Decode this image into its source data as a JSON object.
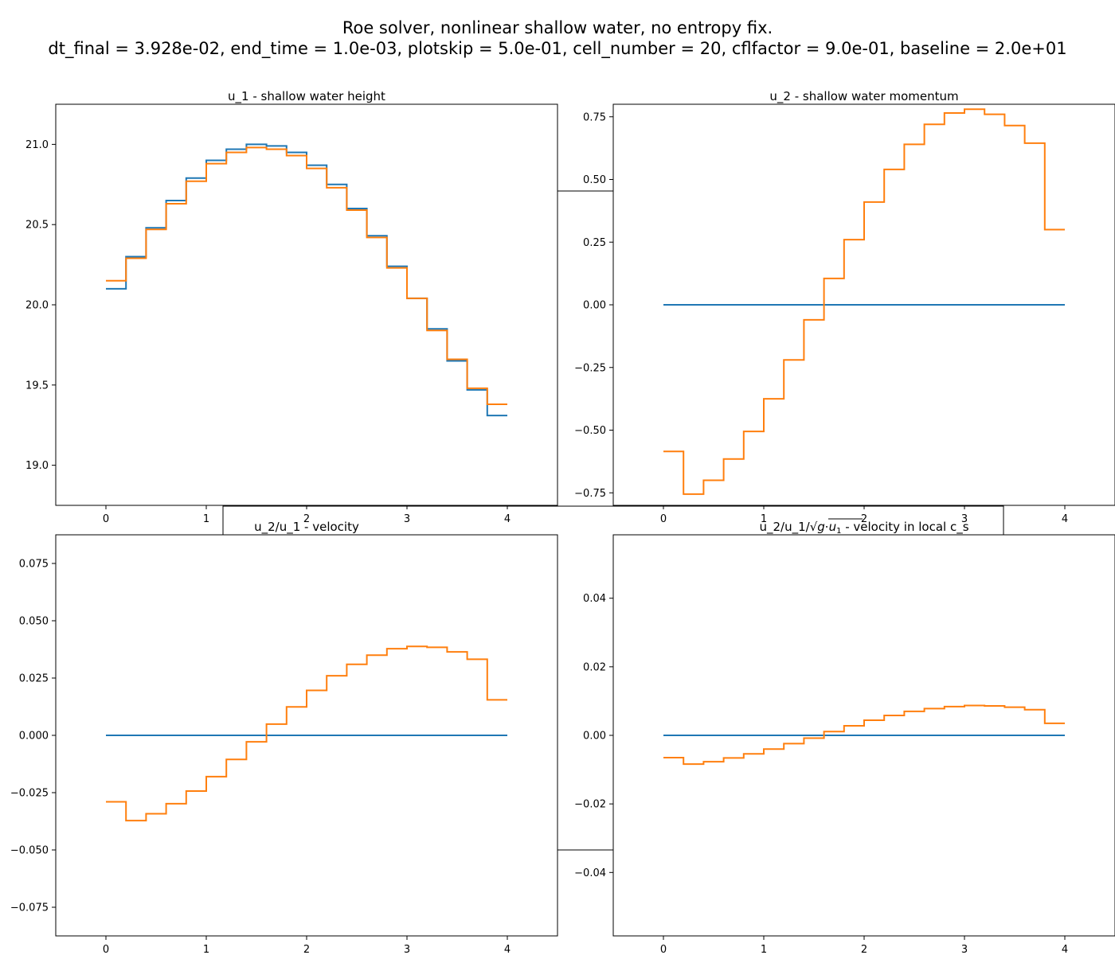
{
  "figure": {
    "title_line1": "Roe solver, nonlinear shallow water, no entropy fix.",
    "title_line2": "dt_final = 3.928e-02, end_time = 1.0e-03, plotskip = 5.0e-01, cell_number = 20, cflfactor = 9.0e-01, baseline = 2.0e+01"
  },
  "colors": {
    "series_blue": "#1f77b4",
    "series_orange": "#ff7f0e"
  },
  "chart_data": [
    {
      "type": "line",
      "step": "post",
      "title": "u_1 - shallow water height",
      "xlim": [
        -0.5,
        4.5
      ],
      "ylim": [
        18.75,
        21.25
      ],
      "xticks": [
        0,
        1,
        2,
        3,
        4
      ],
      "yticks": [
        19.0,
        19.5,
        20.0,
        20.5,
        21.0
      ],
      "ytick_labels": [
        "19.0",
        "19.5",
        "20.0",
        "20.5",
        "21.0"
      ],
      "x": [
        0,
        0.2,
        0.4,
        0.6,
        0.8,
        1.0,
        1.2,
        1.4,
        1.6,
        1.8,
        2.0,
        2.2,
        2.4,
        2.6,
        2.8,
        3.0,
        3.2,
        3.4,
        3.6,
        3.8,
        4.0
      ],
      "series": [
        {
          "values": [
            20.1,
            20.3,
            20.48,
            20.65,
            20.79,
            20.9,
            20.97,
            21.0,
            20.99,
            20.95,
            20.87,
            20.75,
            20.6,
            20.43,
            20.24,
            20.04,
            19.85,
            19.65,
            19.47,
            19.31,
            19.31
          ]
        },
        {
          "values": [
            20.15,
            20.29,
            20.47,
            20.63,
            20.77,
            20.88,
            20.95,
            20.98,
            20.97,
            20.93,
            20.85,
            20.73,
            20.59,
            20.42,
            20.23,
            20.04,
            19.84,
            19.66,
            19.48,
            19.38,
            19.38
          ]
        }
      ]
    },
    {
      "type": "line",
      "step": "post",
      "title": "u_2 - shallow water momentum",
      "xlim": [
        -0.5,
        4.5
      ],
      "ylim": [
        -0.8,
        0.8
      ],
      "xticks": [
        0,
        1,
        2,
        3,
        4
      ],
      "yticks": [
        -0.75,
        -0.5,
        -0.25,
        0.0,
        0.25,
        0.5,
        0.75
      ],
      "ytick_labels": [
        "−0.75",
        "−0.50",
        "−0.25",
        "0.00",
        "0.25",
        "0.50",
        "0.75"
      ],
      "x": [
        0,
        0.2,
        0.4,
        0.6,
        0.8,
        1.0,
        1.2,
        1.4,
        1.6,
        1.8,
        2.0,
        2.2,
        2.4,
        2.6,
        2.8,
        3.0,
        3.2,
        3.4,
        3.6,
        3.8,
        4.0
      ],
      "series": [
        {
          "values": [
            0,
            0,
            0,
            0,
            0,
            0,
            0,
            0,
            0,
            0,
            0,
            0,
            0,
            0,
            0,
            0,
            0,
            0,
            0,
            0,
            0
          ]
        },
        {
          "values": [
            -0.585,
            -0.755,
            -0.7,
            -0.615,
            -0.505,
            -0.375,
            -0.22,
            -0.06,
            0.105,
            0.26,
            0.41,
            0.54,
            0.64,
            0.72,
            0.765,
            0.78,
            0.76,
            0.715,
            0.645,
            0.3,
            0.3
          ]
        }
      ]
    },
    {
      "type": "line",
      "step": "post",
      "title": "u_2/u_1 - velocity",
      "xlim": [
        -0.5,
        4.5
      ],
      "ylim": [
        -0.0875,
        0.0875
      ],
      "xticks": [
        0,
        1,
        2,
        3,
        4
      ],
      "yticks": [
        -0.075,
        -0.05,
        -0.025,
        0.0,
        0.025,
        0.05,
        0.075
      ],
      "ytick_labels": [
        "−0.075",
        "−0.050",
        "−0.025",
        "0.000",
        "0.025",
        "0.050",
        "0.075"
      ],
      "x": [
        0,
        0.2,
        0.4,
        0.6,
        0.8,
        1.0,
        1.2,
        1.4,
        1.6,
        1.8,
        2.0,
        2.2,
        2.4,
        2.6,
        2.8,
        3.0,
        3.2,
        3.4,
        3.6,
        3.8,
        4.0
      ],
      "series": [
        {
          "values": [
            0,
            0,
            0,
            0,
            0,
            0,
            0,
            0,
            0,
            0,
            0,
            0,
            0,
            0,
            0,
            0,
            0,
            0,
            0,
            0,
            0
          ]
        },
        {
          "values": [
            -0.029,
            -0.0372,
            -0.0342,
            -0.0298,
            -0.0243,
            -0.018,
            -0.0105,
            -0.0028,
            0.0049,
            0.0124,
            0.0196,
            0.026,
            0.031,
            0.035,
            0.0378,
            0.0388,
            0.0384,
            0.0364,
            0.0332,
            0.0155,
            0.0155
          ]
        }
      ]
    },
    {
      "type": "line",
      "step": "post",
      "title_prefix": "u_2/u_1/",
      "title_suffix": " - velocity in local c_s",
      "xlim": [
        -0.5,
        4.5
      ],
      "ylim": [
        -0.0585,
        0.0585
      ],
      "xticks": [
        0,
        1,
        2,
        3,
        4
      ],
      "yticks": [
        -0.04,
        -0.02,
        0.0,
        0.02,
        0.04
      ],
      "ytick_labels": [
        "−0.04",
        "−0.02",
        "0.00",
        "0.02",
        "0.04"
      ],
      "x": [
        0,
        0.2,
        0.4,
        0.6,
        0.8,
        1.0,
        1.2,
        1.4,
        1.6,
        1.8,
        2.0,
        2.2,
        2.4,
        2.6,
        2.8,
        3.0,
        3.2,
        3.4,
        3.6,
        3.8,
        4.0
      ],
      "series": [
        {
          "values": [
            0,
            0,
            0,
            0,
            0,
            0,
            0,
            0,
            0,
            0,
            0,
            0,
            0,
            0,
            0,
            0,
            0,
            0,
            0,
            0,
            0
          ]
        },
        {
          "values": [
            -0.0065,
            -0.0084,
            -0.0077,
            -0.0066,
            -0.0054,
            -0.004,
            -0.0024,
            -0.0008,
            0.0011,
            0.0028,
            0.0044,
            0.0058,
            0.007,
            0.0078,
            0.0084,
            0.0087,
            0.0086,
            0.0082,
            0.0075,
            0.0035,
            0.0035
          ]
        }
      ]
    }
  ]
}
